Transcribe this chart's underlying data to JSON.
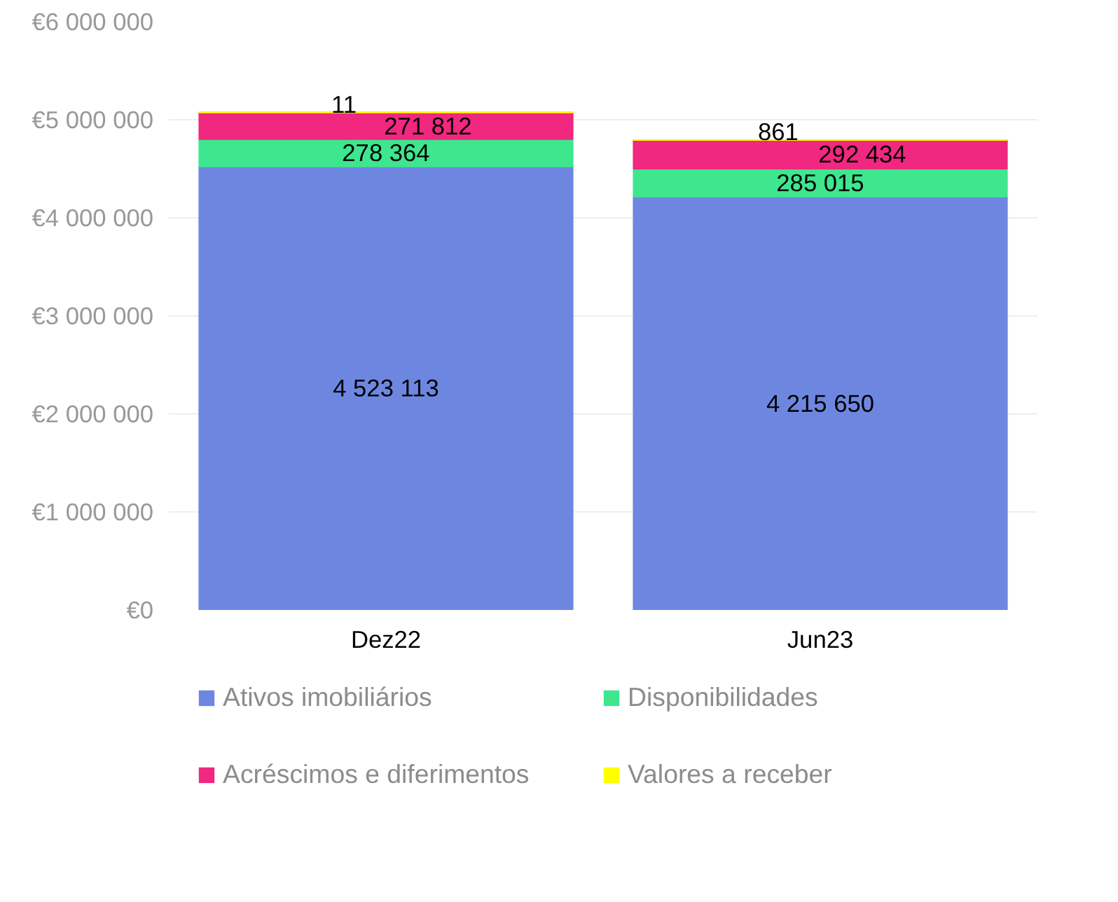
{
  "chart_data": {
    "type": "bar",
    "stacked": true,
    "categories": [
      "Dez22",
      "Jun23"
    ],
    "series": [
      {
        "name": "Ativos imobiliários",
        "color": "#6d87e1",
        "values": [
          4523113,
          4215650
        ],
        "value_labels": [
          "4 523 113",
          "4 215 650"
        ]
      },
      {
        "name": "Disponibilidades",
        "color": "#3ee68e",
        "values": [
          278364,
          285015
        ],
        "value_labels": [
          "278 364",
          "285 015"
        ]
      },
      {
        "name": "Acréscimos e diferimentos",
        "color": "#f0287f",
        "values": [
          271812,
          292434
        ],
        "value_labels": [
          "271 812",
          "292 434"
        ]
      },
      {
        "name": "Valores a receber",
        "color": "#ffff00",
        "values": [
          11,
          861
        ],
        "value_labels": [
          "11",
          "861"
        ]
      }
    ],
    "ylim": [
      0,
      6000000
    ],
    "yticks": [
      {
        "value": 0,
        "label": "€0"
      },
      {
        "value": 1000000,
        "label": "€1 000 000"
      },
      {
        "value": 2000000,
        "label": "€2 000 000"
      },
      {
        "value": 3000000,
        "label": "€3 000 000"
      },
      {
        "value": 4000000,
        "label": "€4 000 000"
      },
      {
        "value": 5000000,
        "label": "€5 000 000"
      },
      {
        "value": 6000000,
        "label": "€6 000 000"
      }
    ],
    "grid": "y",
    "legend": "bottom"
  }
}
